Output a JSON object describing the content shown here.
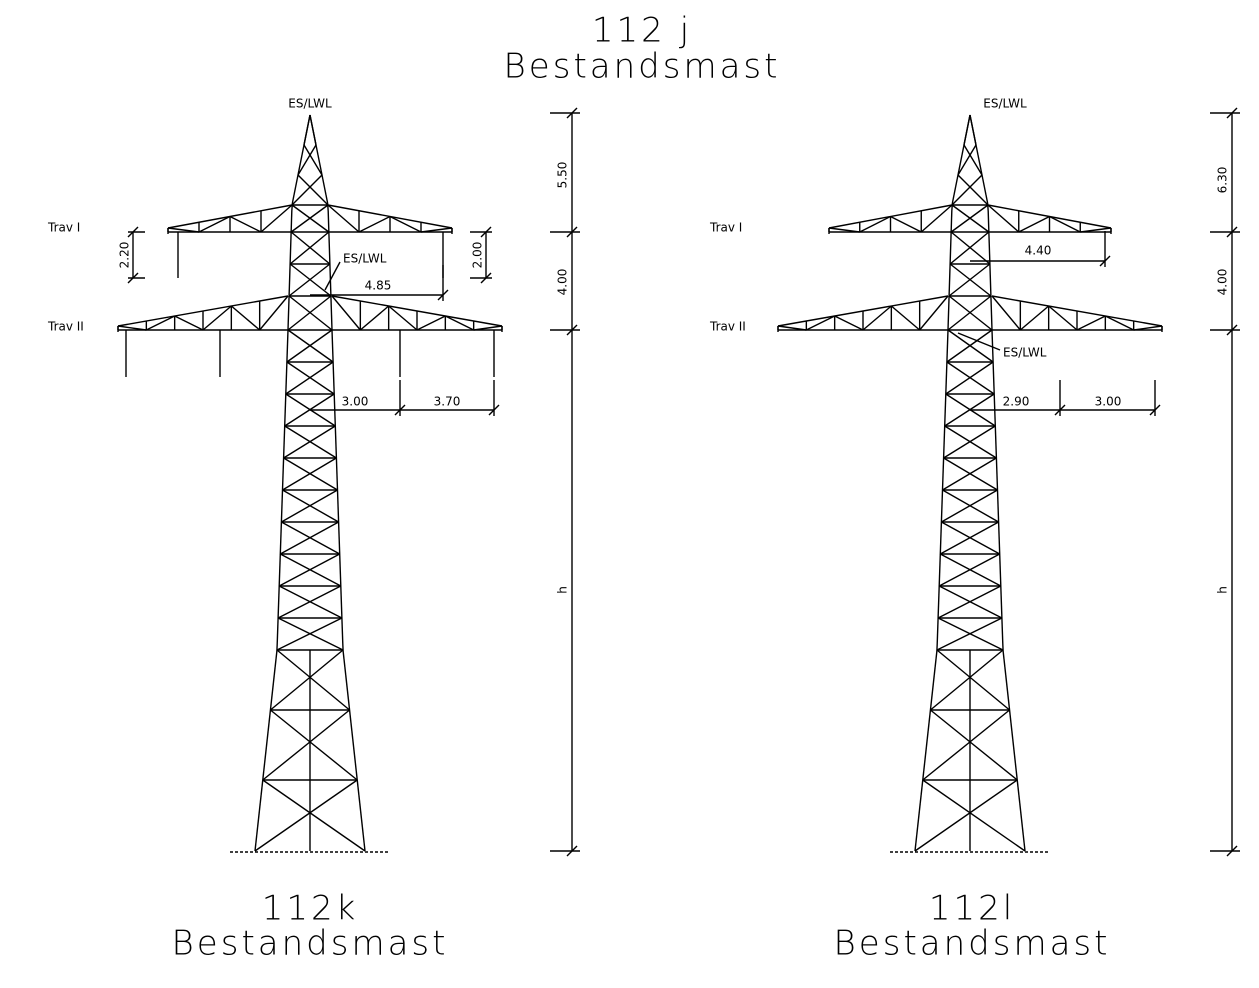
{
  "header": {
    "title": "112 j",
    "subtitle": "Bestandsmast"
  },
  "towers": [
    {
      "name": "112k",
      "subtitle": "Bestandsmast",
      "top_label": "ES/LWL",
      "trav_1": "Trav I",
      "trav_2": "Trav II",
      "es_lwl": "ES/LWL",
      "dim_top": "5.50",
      "dim_trav": "4.00",
      "dim_h": "h",
      "dim_insul_left": "2.20",
      "dim_insul_right": "2.00",
      "dim_trav1_reach": "4.85",
      "dim_trav2_inner": "3.00",
      "dim_trav2_outer": "3.70"
    },
    {
      "name": "112l",
      "subtitle": "Bestandsmast",
      "top_label": "ES/LWL",
      "trav_1": "Trav I",
      "trav_2": "Trav II",
      "es_lwl": "ES/LWL",
      "dim_top": "6.30",
      "dim_trav": "4.00",
      "dim_h": "h",
      "dim_trav1_reach": "4.40",
      "dim_trav2_inner": "2.90",
      "dim_trav2_outer": "3.00"
    }
  ]
}
